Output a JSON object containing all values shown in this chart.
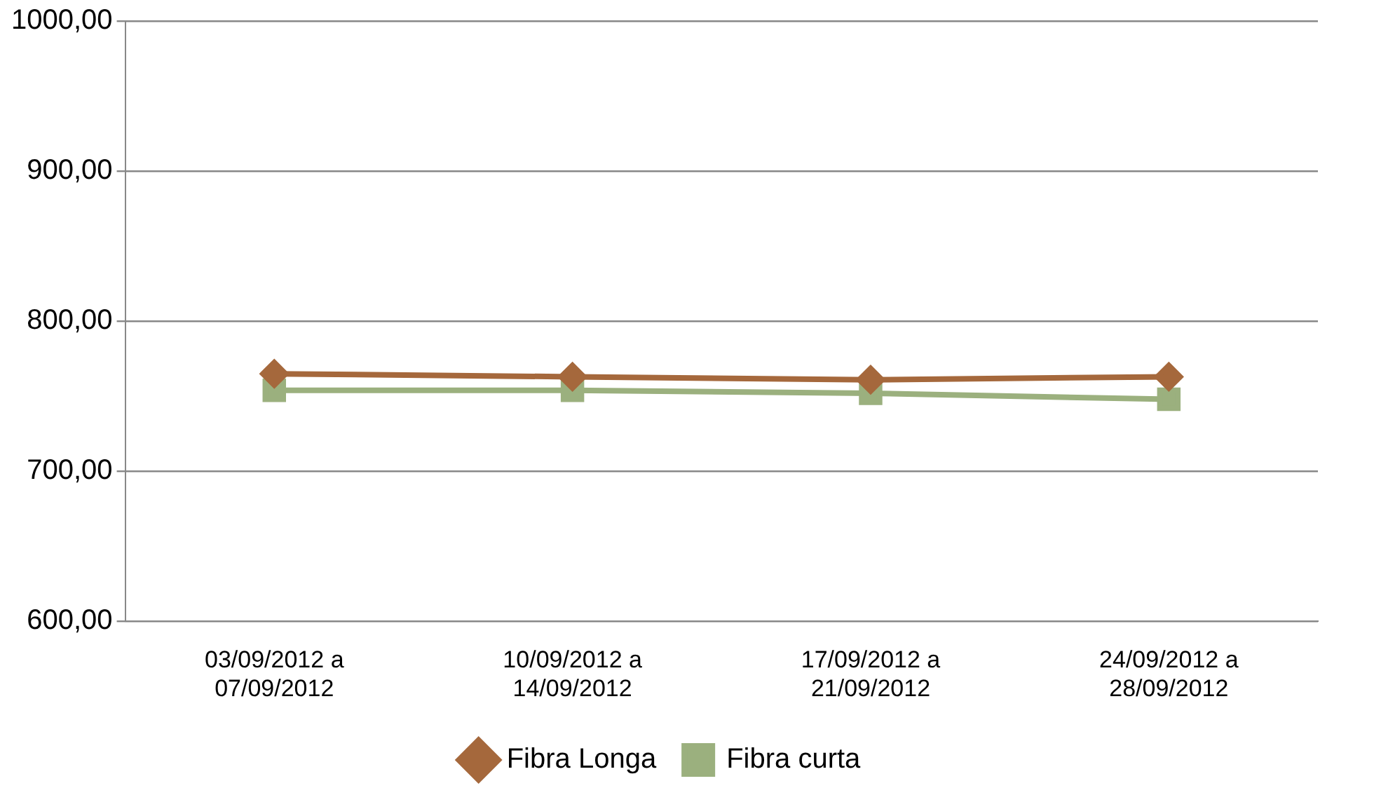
{
  "chart_data": {
    "type": "line",
    "categories": [
      "03/09/2012 a 07/09/2012",
      "10/09/2012 a 14/09/2012",
      "17/09/2012 a 21/09/2012",
      "24/09/2012 a 28/09/2012"
    ],
    "series": [
      {
        "name": "Fibra Longa",
        "color": "#a5683c",
        "marker": "diamond",
        "values": [
          765,
          763,
          761,
          763
        ]
      },
      {
        "name": "Fibra curta",
        "color": "#9bb07e",
        "marker": "square",
        "values": [
          754,
          754,
          752,
          748
        ]
      }
    ],
    "ylim": [
      600,
      1000
    ],
    "yticks": [
      {
        "value": 600,
        "label": "600,00"
      },
      {
        "value": 700,
        "label": "700,00"
      },
      {
        "value": 800,
        "label": "800,00"
      },
      {
        "value": 900,
        "label": "900,00"
      },
      {
        "value": 1000,
        "label": "1000,00"
      }
    ],
    "grid": "y",
    "legend": "bottom",
    "line_style": "solid"
  }
}
